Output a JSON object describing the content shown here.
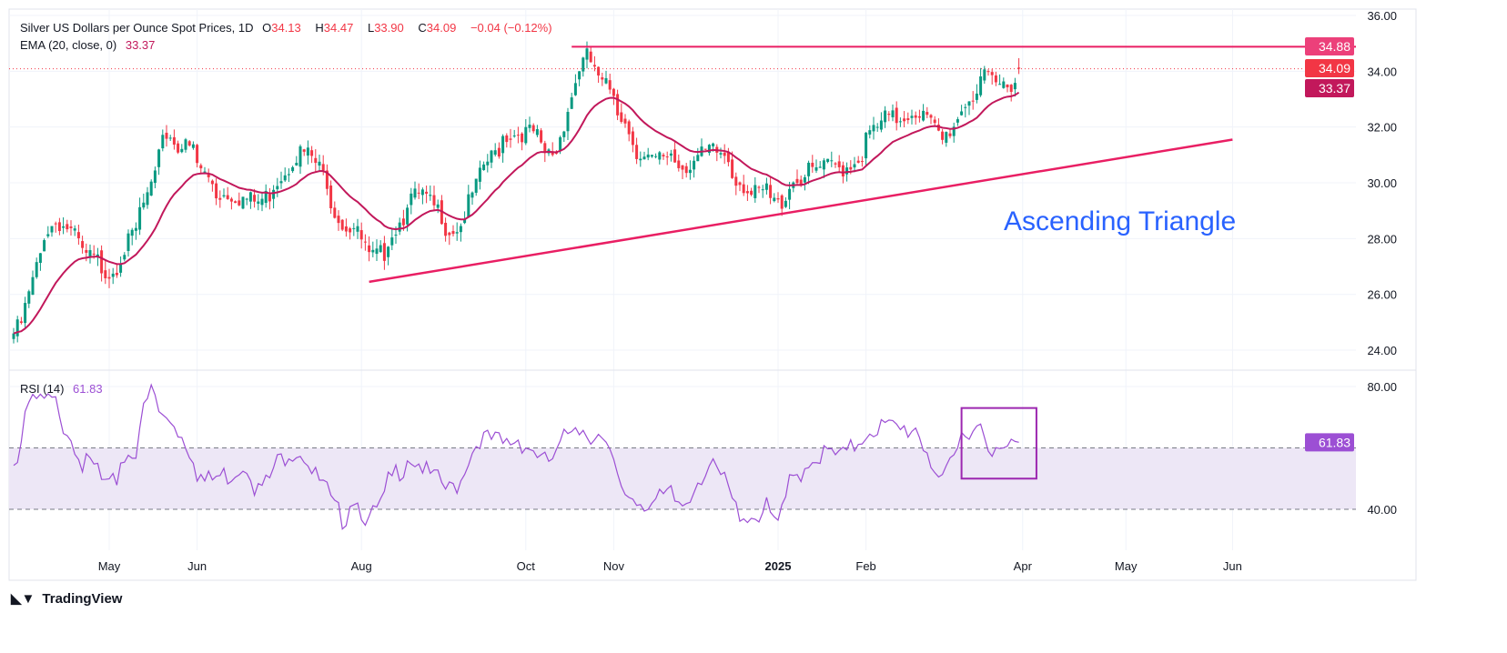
{
  "header": {
    "symbol_title": "Silver US Dollars per Ounce Spot Prices, 1D",
    "open_label": "O",
    "open": "34.13",
    "high_label": "H",
    "high": "34.47",
    "low_label": "L",
    "low": "33.90",
    "close_label": "C",
    "close": "34.09",
    "change": "−0.04 (−0.12%)",
    "ema_label": "EMA (20, close, 0)",
    "ema_value": "33.37",
    "rsi_label": "RSI (14)",
    "rsi_value": "61.83"
  },
  "logo": {
    "text": "TradingView",
    "mark": "TV"
  },
  "colors": {
    "up": "#089981",
    "down": "#f23645",
    "ema": "#c2185b",
    "trendline": "#e91e63",
    "resistance_tag": "#ec407a",
    "close_tag": "#f23645",
    "ema_tag": "#c2185b",
    "rsi": "#9c4fd4",
    "rsi_band": "#ede7f6",
    "annotation_text": "#2962ff"
  },
  "chart_data": [
    {
      "type": "candlestick",
      "title": "Silver US Dollars per Ounce Spot Prices, 1D",
      "ylim": [
        24,
        36
      ],
      "y_ticks": [
        "24.00",
        "26.00",
        "28.00",
        "30.00",
        "32.00",
        "34.00",
        "36.00"
      ],
      "x_ticks": [
        {
          "label": "May",
          "date": "2024-05-01"
        },
        {
          "label": "Jun",
          "date": "2024-06-01"
        },
        {
          "label": "Aug",
          "date": "2024-08-01"
        },
        {
          "label": "Oct",
          "date": "2024-10-01"
        },
        {
          "label": "Nov",
          "date": "2024-11-01"
        },
        {
          "label": "2025",
          "date": "2025-01-01"
        },
        {
          "label": "Feb",
          "date": "2025-02-01"
        },
        {
          "label": "Apr",
          "date": "2025-04-01"
        },
        {
          "label": "May",
          "date": "2025-05-01"
        },
        {
          "label": "Jun",
          "date": "2025-06-01"
        }
      ],
      "grid": true,
      "close_series": [
        [
          "2024-03-27",
          24.6
        ],
        [
          "2024-04-01",
          25.5
        ],
        [
          "2024-04-06",
          27.9
        ],
        [
          "2024-04-11",
          28.6
        ],
        [
          "2024-04-16",
          28.4
        ],
        [
          "2024-04-21",
          27.5
        ],
        [
          "2024-04-26",
          27.2
        ],
        [
          "2024-05-01",
          26.8
        ],
        [
          "2024-05-06",
          27.4
        ],
        [
          "2024-05-11",
          28.5
        ],
        [
          "2024-05-16",
          29.7
        ],
        [
          "2024-05-21",
          31.8
        ],
        [
          "2024-05-26",
          31.4
        ],
        [
          "2024-05-31",
          31.2
        ],
        [
          "2024-06-05",
          30.3
        ],
        [
          "2024-06-10",
          29.6
        ],
        [
          "2024-06-15",
          29.6
        ],
        [
          "2024-06-20",
          29.4
        ],
        [
          "2024-06-25",
          29.3
        ],
        [
          "2024-06-30",
          29.8
        ],
        [
          "2024-07-05",
          30.6
        ],
        [
          "2024-07-10",
          31.1
        ],
        [
          "2024-07-15",
          30.9
        ],
        [
          "2024-07-20",
          29.9
        ],
        [
          "2024-07-25",
          28.5
        ],
        [
          "2024-07-30",
          28.4
        ],
        [
          "2024-08-04",
          27.2
        ],
        [
          "2024-08-09",
          27.5
        ],
        [
          "2024-08-14",
          28.4
        ],
        [
          "2024-08-19",
          29.4
        ],
        [
          "2024-08-24",
          29.6
        ],
        [
          "2024-08-29",
          29.0
        ],
        [
          "2024-09-03",
          28.3
        ],
        [
          "2024-09-08",
          28.6
        ],
        [
          "2024-09-13",
          30.2
        ],
        [
          "2024-09-18",
          30.9
        ],
        [
          "2024-09-23",
          31.7
        ],
        [
          "2024-09-28",
          31.8
        ],
        [
          "2024-10-03",
          31.8
        ],
        [
          "2024-10-08",
          31.0
        ],
        [
          "2024-10-13",
          31.2
        ],
        [
          "2024-10-18",
          33.6
        ],
        [
          "2024-10-23",
          34.5
        ],
        [
          "2024-10-28",
          33.6
        ],
        [
          "2024-11-02",
          33.2
        ],
        [
          "2024-11-07",
          31.9
        ],
        [
          "2024-11-12",
          30.8
        ],
        [
          "2024-11-17",
          30.7
        ],
        [
          "2024-11-22",
          31.1
        ],
        [
          "2024-11-27",
          30.6
        ],
        [
          "2024-12-02",
          30.8
        ],
        [
          "2024-12-07",
          31.2
        ],
        [
          "2024-12-12",
          31.0
        ],
        [
          "2024-12-17",
          30.2
        ],
        [
          "2024-12-22",
          29.5
        ],
        [
          "2024-12-27",
          29.7
        ],
        [
          "2025-01-01",
          29.2
        ],
        [
          "2025-01-06",
          30.0
        ],
        [
          "2025-01-11",
          30.3
        ],
        [
          "2025-01-16",
          30.5
        ],
        [
          "2025-01-21",
          30.6
        ],
        [
          "2025-01-26",
          30.5
        ],
        [
          "2025-01-31",
          31.0
        ],
        [
          "2025-02-05",
          31.9
        ],
        [
          "2025-02-10",
          32.3
        ],
        [
          "2025-02-15",
          32.3
        ],
        [
          "2025-02-20",
          32.6
        ],
        [
          "2025-02-25",
          32.3
        ],
        [
          "2025-03-02",
          31.3
        ],
        [
          "2025-03-07",
          32.3
        ],
        [
          "2025-03-12",
          33.0
        ],
        [
          "2025-03-17",
          33.8
        ],
        [
          "2025-03-22",
          33.4
        ],
        [
          "2025-03-27",
          33.6
        ],
        [
          "2025-03-31",
          34.09
        ]
      ],
      "last_bar": {
        "open": 34.13,
        "high": 34.47,
        "low": 33.9,
        "close": 34.09
      },
      "indicators": [
        {
          "name": "EMA (20, close, 0)",
          "last": 33.37
        }
      ],
      "price_tags": [
        "34.88",
        "34.09",
        "33.37"
      ],
      "annotations": {
        "resistance": {
          "price": 34.88,
          "from": "2024-10-17"
        },
        "support_trendline": {
          "from": [
            "2024-08-05",
            26.45
          ],
          "to": [
            "2025-06-01",
            31.55
          ]
        },
        "text": "Ascending Triangle"
      }
    },
    {
      "type": "line",
      "title": "RSI (14)",
      "ylim": [
        25,
        88
      ],
      "y_ticks": [
        "40.00",
        "80.00"
      ],
      "band": [
        40,
        60
      ],
      "last": 61.83,
      "last_tag": "61.83",
      "series": [
        [
          "2024-03-27",
          55
        ],
        [
          "2024-04-01",
          72.6
        ],
        [
          "2024-04-06",
          75.5
        ],
        [
          "2024-04-11",
          74
        ],
        [
          "2024-04-16",
          66.7
        ],
        [
          "2024-04-21",
          54.8
        ],
        [
          "2024-04-26",
          53.3
        ],
        [
          "2024-05-01",
          46
        ],
        [
          "2024-05-06",
          56
        ],
        [
          "2024-05-11",
          60.7
        ],
        [
          "2024-05-16",
          78.5
        ],
        [
          "2024-05-21",
          69.6
        ],
        [
          "2024-05-26",
          68
        ],
        [
          "2024-05-31",
          57.8
        ],
        [
          "2024-06-05",
          48.9
        ],
        [
          "2024-06-10",
          50.4
        ],
        [
          "2024-06-15",
          51.9
        ],
        [
          "2024-06-20",
          55
        ],
        [
          "2024-06-25",
          46
        ],
        [
          "2024-06-30",
          51.9
        ],
        [
          "2024-07-05",
          59.3
        ],
        [
          "2024-07-10",
          59.3
        ],
        [
          "2024-07-15",
          51.9
        ],
        [
          "2024-07-20",
          44.4
        ],
        [
          "2024-07-25",
          37
        ],
        [
          "2024-07-30",
          44.4
        ],
        [
          "2024-08-04",
          34
        ],
        [
          "2024-08-09",
          43
        ],
        [
          "2024-08-14",
          51.9
        ],
        [
          "2024-08-19",
          57.8
        ],
        [
          "2024-08-24",
          53.3
        ],
        [
          "2024-08-29",
          48.9
        ],
        [
          "2024-09-03",
          46
        ],
        [
          "2024-09-08",
          51.9
        ],
        [
          "2024-09-13",
          63.7
        ],
        [
          "2024-09-18",
          62.2
        ],
        [
          "2024-09-23",
          60.7
        ],
        [
          "2024-09-28",
          63.7
        ],
        [
          "2024-10-03",
          59.3
        ],
        [
          "2024-10-08",
          55
        ],
        [
          "2024-10-13",
          57.8
        ],
        [
          "2024-10-18",
          69.6
        ],
        [
          "2024-10-23",
          65.2
        ],
        [
          "2024-10-28",
          63.7
        ],
        [
          "2024-11-02",
          51.9
        ],
        [
          "2024-11-07",
          44.4
        ],
        [
          "2024-11-12",
          43
        ],
        [
          "2024-11-17",
          41.5
        ],
        [
          "2024-11-22",
          44.4
        ],
        [
          "2024-11-27",
          41.5
        ],
        [
          "2024-12-02",
          48.9
        ],
        [
          "2024-12-07",
          55
        ],
        [
          "2024-12-12",
          48.9
        ],
        [
          "2024-12-17",
          40
        ],
        [
          "2024-12-22",
          37
        ],
        [
          "2024-12-27",
          40
        ],
        [
          "2025-01-01",
          35.6
        ],
        [
          "2025-01-06",
          48.9
        ],
        [
          "2025-01-11",
          55
        ],
        [
          "2025-01-16",
          57.8
        ],
        [
          "2025-01-21",
          57.8
        ],
        [
          "2025-01-26",
          56.3
        ],
        [
          "2025-01-31",
          63.7
        ],
        [
          "2025-02-05",
          66.7
        ],
        [
          "2025-02-10",
          66.7
        ],
        [
          "2025-02-15",
          65.2
        ],
        [
          "2025-02-20",
          66.7
        ],
        [
          "2025-02-25",
          59.3
        ],
        [
          "2025-03-02",
          44.4
        ],
        [
          "2025-03-07",
          59.3
        ],
        [
          "2025-03-12",
          66.7
        ],
        [
          "2025-03-17",
          68.1
        ],
        [
          "2025-03-22",
          55
        ],
        [
          "2025-03-27",
          60.7
        ],
        [
          "2025-03-31",
          61.83
        ]
      ],
      "highlight_box": {
        "from": "2025-03-10",
        "to": "2025-04-05",
        "rsi_top": 73,
        "rsi_bottom": 50
      }
    }
  ]
}
